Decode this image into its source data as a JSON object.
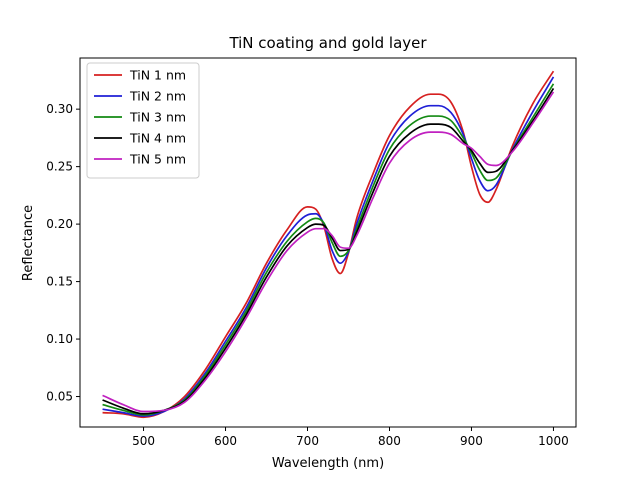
{
  "chart_data": {
    "type": "line",
    "title": "TiN coating and gold layer",
    "xlabel": "Wavelength (nm)",
    "ylabel": "Reflectance",
    "xlim": [
      422.5,
      1027.5
    ],
    "ylim": [
      0.0235,
      0.3445
    ],
    "xticks": [
      500,
      600,
      700,
      800,
      900,
      1000
    ],
    "yticks": [
      0.05,
      0.1,
      0.15,
      0.2,
      0.25,
      0.3
    ],
    "grid": false,
    "legend_position": "upper-left",
    "x": [
      450,
      475,
      500,
      525,
      550,
      575,
      600,
      625,
      650,
      675,
      700,
      710,
      720,
      730,
      740,
      750,
      760,
      780,
      800,
      825,
      850,
      860,
      875,
      890,
      900,
      910,
      920,
      930,
      950,
      975,
      1000
    ],
    "series": [
      {
        "name": "TiN 1 nm",
        "color": "#d62020",
        "values": [
          0.036,
          0.035,
          0.032,
          0.037,
          0.05,
          0.073,
          0.102,
          0.131,
          0.166,
          0.195,
          0.215,
          0.213,
          0.198,
          0.17,
          0.157,
          0.175,
          0.205,
          0.244,
          0.277,
          0.302,
          0.313,
          0.313,
          0.306,
          0.28,
          0.25,
          0.226,
          0.219,
          0.23,
          0.268,
          0.305,
          0.333
        ]
      },
      {
        "name": "TiN 2 nm",
        "color": "#1f1fd6",
        "values": [
          0.039,
          0.036,
          0.033,
          0.037,
          0.048,
          0.07,
          0.098,
          0.127,
          0.162,
          0.19,
          0.208,
          0.209,
          0.2,
          0.177,
          0.166,
          0.176,
          0.2,
          0.238,
          0.271,
          0.294,
          0.303,
          0.303,
          0.297,
          0.278,
          0.257,
          0.238,
          0.229,
          0.234,
          0.265,
          0.298,
          0.328
        ]
      },
      {
        "name": "TiN 3 nm",
        "color": "#138a13",
        "values": [
          0.043,
          0.038,
          0.034,
          0.038,
          0.047,
          0.068,
          0.095,
          0.124,
          0.158,
          0.185,
          0.202,
          0.205,
          0.201,
          0.184,
          0.172,
          0.177,
          0.196,
          0.233,
          0.265,
          0.286,
          0.294,
          0.294,
          0.29,
          0.275,
          0.262,
          0.247,
          0.238,
          0.24,
          0.264,
          0.293,
          0.322
        ]
      },
      {
        "name": "TiN 4 nm",
        "color": "#000000",
        "values": [
          0.047,
          0.04,
          0.035,
          0.038,
          0.046,
          0.066,
          0.092,
          0.121,
          0.154,
          0.181,
          0.197,
          0.2,
          0.199,
          0.188,
          0.177,
          0.178,
          0.193,
          0.228,
          0.259,
          0.279,
          0.287,
          0.287,
          0.284,
          0.272,
          0.264,
          0.253,
          0.245,
          0.246,
          0.264,
          0.29,
          0.318
        ]
      },
      {
        "name": "TiN 5 nm",
        "color": "#c020c0",
        "values": [
          0.051,
          0.043,
          0.037,
          0.038,
          0.045,
          0.064,
          0.089,
          0.118,
          0.15,
          0.177,
          0.193,
          0.196,
          0.196,
          0.19,
          0.18,
          0.179,
          0.19,
          0.223,
          0.253,
          0.273,
          0.28,
          0.28,
          0.278,
          0.27,
          0.266,
          0.259,
          0.252,
          0.251,
          0.263,
          0.288,
          0.315
        ]
      }
    ]
  }
}
